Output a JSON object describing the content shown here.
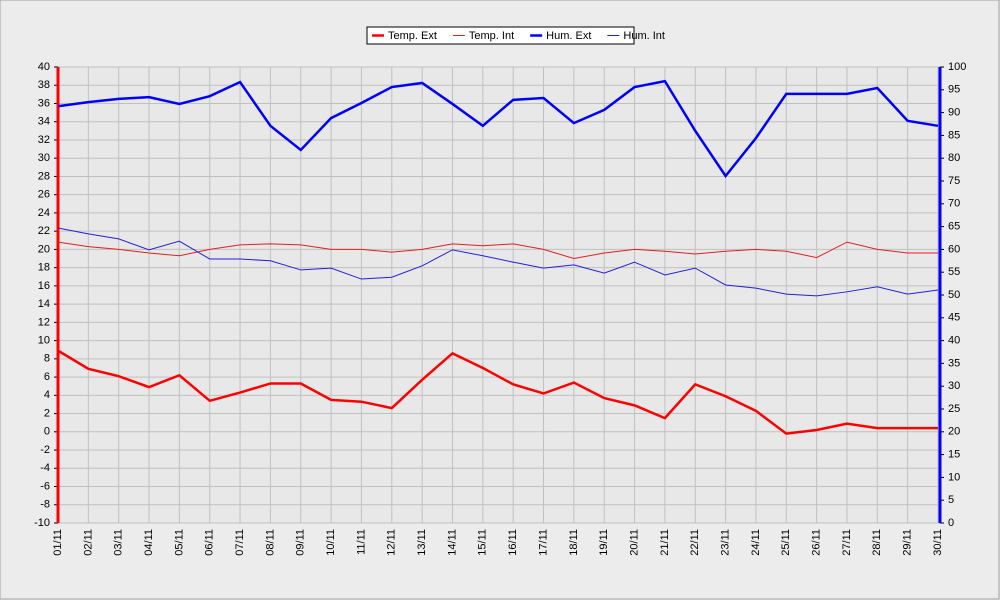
{
  "chart_data": {
    "type": "line",
    "categories": [
      "01/11",
      "02/11",
      "03/11",
      "04/11",
      "05/11",
      "06/11",
      "07/11",
      "08/11",
      "09/11",
      "10/11",
      "11/11",
      "12/11",
      "13/11",
      "14/11",
      "15/11",
      "16/11",
      "17/11",
      "18/11",
      "19/11",
      "20/11",
      "21/11",
      "22/11",
      "23/11",
      "24/11",
      "25/11",
      "26/11",
      "27/11",
      "28/11",
      "29/11",
      "30/11"
    ],
    "ylim": [
      -10,
      40
    ],
    "yticks": [
      -10,
      -8,
      -6,
      -4,
      -2,
      0,
      2,
      4,
      6,
      8,
      10,
      12,
      14,
      16,
      18,
      20,
      22,
      24,
      26,
      28,
      30,
      32,
      34,
      36,
      38,
      40
    ],
    "y2lim": [
      0,
      100
    ],
    "y2ticks": [
      0,
      5,
      10,
      15,
      20,
      25,
      30,
      35,
      40,
      45,
      50,
      55,
      60,
      65,
      70,
      75,
      80,
      85,
      90,
      95,
      100
    ],
    "grid": true,
    "legend": "top",
    "series": [
      {
        "name": "Temp. Ext",
        "color": "#ff0000",
        "values": [
          8.9,
          6.9,
          6.1,
          4.9,
          6.2,
          3.4,
          4.3,
          5.3,
          5.3,
          3.5,
          3.3,
          2.6,
          5.7,
          8.6,
          7.0,
          5.2,
          4.2,
          5.4,
          3.7,
          2.9,
          1.5,
          5.2,
          3.9,
          2.3,
          -0.2,
          0.2,
          0.9,
          0.4,
          0.4,
          0.4
        ]
      },
      {
        "name": "Temp. Int",
        "color": "#e02020",
        "values": [
          20.8,
          20.3,
          20.0,
          19.6,
          19.3,
          20.0,
          20.5,
          20.6,
          20.5,
          20.0,
          20.0,
          19.7,
          20.0,
          20.6,
          20.4,
          20.6,
          20.0,
          19.0,
          19.6,
          20.0,
          19.8,
          19.5,
          19.8,
          20.0,
          19.8,
          19.1,
          20.8,
          20.0,
          19.6,
          19.6
        ]
      },
      {
        "name": "Hum. Ext",
        "color": "#0000ff",
        "axis": "y2",
        "values": [
          91.4,
          92.3,
          93.0,
          93.4,
          91.9,
          93.6,
          96.7,
          87.1,
          81.8,
          88.8,
          92.1,
          95.6,
          96.5,
          91.9,
          87.1,
          92.8,
          93.2,
          87.7,
          90.6,
          95.6,
          96.9,
          86.0,
          76.1,
          84.4,
          94.1,
          94.1,
          94.1,
          95.4,
          88.2,
          87.1
        ]
      },
      {
        "name": "Hum. Int",
        "color": "#2020e0",
        "axis": "y2",
        "values": [
          64.7,
          63.4,
          62.3,
          59.9,
          61.8,
          57.9,
          57.9,
          57.5,
          55.5,
          55.9,
          53.5,
          53.9,
          56.4,
          59.9,
          58.6,
          57.2,
          55.9,
          56.6,
          54.8,
          57.2,
          54.4,
          55.9,
          52.2,
          51.5,
          50.2,
          49.8,
          50.7,
          51.8,
          50.2,
          51.1
        ]
      }
    ]
  }
}
